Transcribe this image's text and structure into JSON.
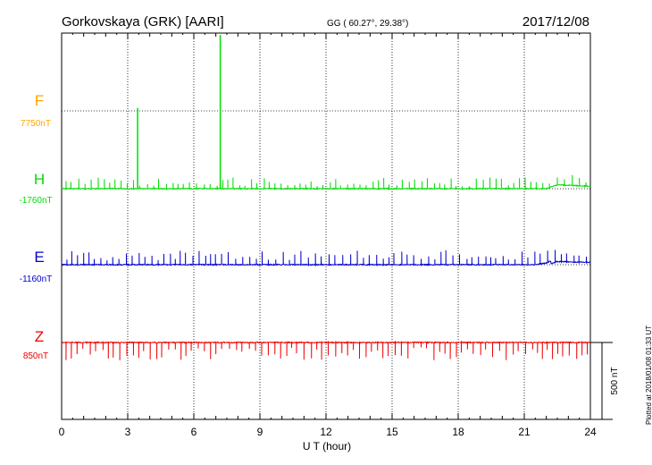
{
  "header": {
    "station": "Gorkovskaya (GRK)  [AARI]",
    "coords": "GG ( 60.27°,  29.38°)",
    "date": "2017/12/08"
  },
  "footer_note": "Plotted at 2018/01/08 01:33 UT",
  "chart_data": {
    "type": "line",
    "xlabel": "U T (hour)",
    "xlim": [
      0,
      24
    ],
    "xticks": [
      "0",
      "3",
      "6",
      "9",
      "12",
      "15",
      "18",
      "21",
      "24"
    ],
    "scale_bar_label": "500 nT",
    "scale_bar_nT": 500,
    "colors": {
      "F": "#ffa500",
      "H": "#00dd00",
      "E": "#0000cc",
      "Z": "#ee0000"
    },
    "series": [
      {
        "name": "F",
        "baseline_label": "7750nT",
        "values": []
      },
      {
        "name": "H",
        "baseline_label": "-1760nT",
        "baseline_nT": -1760,
        "spike_direction": "up",
        "notable_spikes": [
          {
            "x": 3.45,
            "y": -1235
          },
          {
            "x": 7.2,
            "y": -760
          }
        ],
        "late_level": [
          {
            "x": 22.0,
            "y": -1760
          },
          {
            "x": 22.5,
            "y": -1735
          },
          {
            "x": 24.0,
            "y": -1745
          }
        ]
      },
      {
        "name": "E",
        "baseline_label": "-1160nT",
        "baseline_nT": -1160,
        "spike_direction": "up",
        "late_level": [
          {
            "x": 22.0,
            "y": -1160
          },
          {
            "x": 22.5,
            "y": -1140
          },
          {
            "x": 24.0,
            "y": -1145
          }
        ]
      },
      {
        "name": "Z",
        "baseline_label": "850nT",
        "baseline_nT": 850,
        "spike_direction": "down"
      }
    ]
  }
}
